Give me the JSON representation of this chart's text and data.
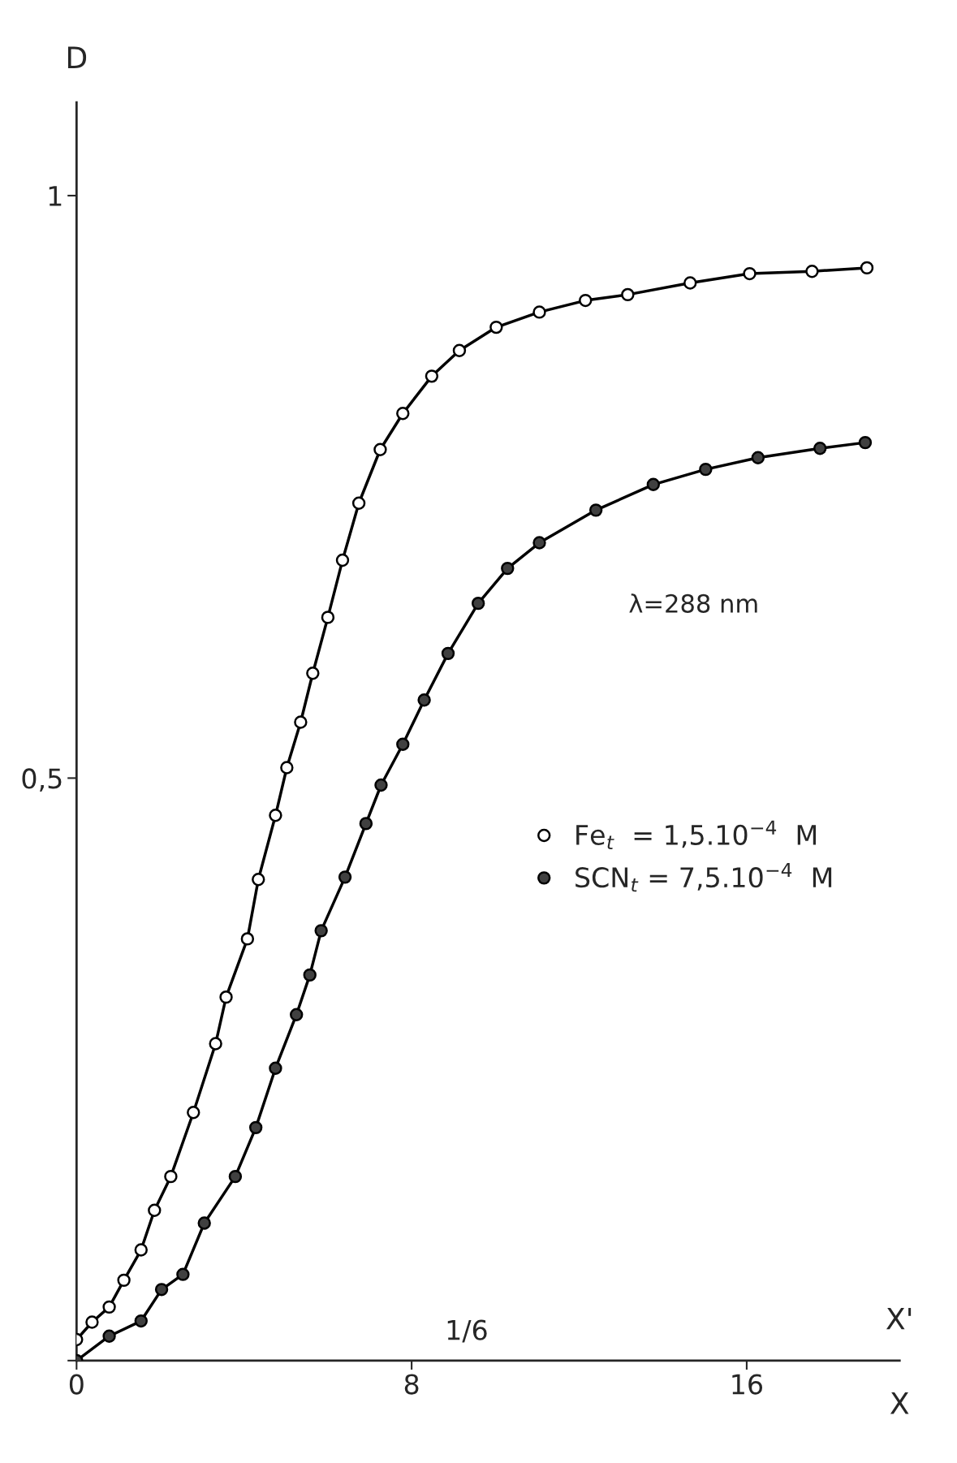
{
  "chart_data": {
    "type": "line",
    "xlabel": "X",
    "ylabel": "D",
    "xlim": [
      0,
      19.65
    ],
    "ylim": [
      0,
      1.08
    ],
    "xticks": [
      {
        "value": 0,
        "label": "0"
      },
      8,
      16
    ],
    "yticks": [
      {
        "value": 0,
        "label": null
      },
      {
        "value": 0.5,
        "label": "0,5"
      },
      1
    ],
    "marker": "circle",
    "line_style": "solid",
    "grid": false,
    "legend": "right",
    "annotations": [
      "λ=288 nm",
      "X'",
      "1/6"
    ],
    "series": [
      {
        "name": "Fe$_{t}$  = 1,5.10$^{−4}$  M",
        "color": "#ffffff",
        "x": [
          0,
          0.37,
          0.78,
          1.13,
          1.54,
          1.86,
          2.25,
          2.79,
          3.32,
          3.57,
          4.08,
          4.34,
          4.75,
          5.02,
          5.35,
          5.64,
          6.0,
          6.35,
          6.74,
          7.25,
          7.79,
          8.48,
          9.14,
          10.02,
          11.05,
          12.15,
          13.16,
          14.65,
          16.07,
          17.56,
          18.87
        ],
        "values": [
          0.018,
          0.033,
          0.046,
          0.069,
          0.095,
          0.129,
          0.158,
          0.213,
          0.272,
          0.312,
          0.362,
          0.413,
          0.468,
          0.509,
          0.548,
          0.59,
          0.638,
          0.687,
          0.736,
          0.782,
          0.813,
          0.845,
          0.867,
          0.887,
          0.9,
          0.91,
          0.915,
          0.925,
          0.933,
          0.935,
          0.938
        ]
      },
      {
        "name": "SCN$_{t}$ = 7,5.10$^{−4}$  M",
        "color": "#404040",
        "x": [
          0,
          0.78,
          1.54,
          2.03,
          2.54,
          3.05,
          3.79,
          4.28,
          4.75,
          5.25,
          5.57,
          5.84,
          6.41,
          6.91,
          7.27,
          7.79,
          8.3,
          8.87,
          9.59,
          10.29,
          11.05,
          12.4,
          13.77,
          15.02,
          16.27,
          17.75,
          18.83
        ],
        "values": [
          0,
          0.021,
          0.034,
          0.061,
          0.074,
          0.118,
          0.158,
          0.2,
          0.251,
          0.297,
          0.331,
          0.369,
          0.415,
          0.461,
          0.494,
          0.529,
          0.567,
          0.607,
          0.65,
          0.68,
          0.702,
          0.73,
          0.752,
          0.765,
          0.775,
          0.783,
          0.788
        ]
      }
    ]
  }
}
